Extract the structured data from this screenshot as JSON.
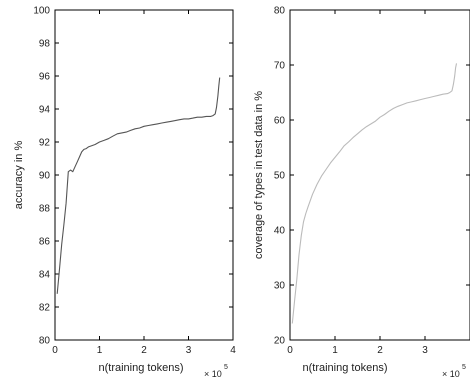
{
  "chart_data": [
    {
      "type": "line",
      "xlabel": "n(training tokens)",
      "ylabel": "accuracy in %",
      "x_exponent_base": "× 10",
      "x_exponent_power": "5",
      "xlim": [
        0,
        4
      ],
      "ylim": [
        80,
        100
      ],
      "xticks": [
        "0",
        "1",
        "2",
        "3",
        "4"
      ],
      "yticks": [
        "80",
        "82",
        "84",
        "86",
        "88",
        "90",
        "92",
        "94",
        "96",
        "98",
        "100"
      ],
      "grid": false,
      "series": [
        {
          "color": "#555555",
          "x": [
            0.05,
            0.1,
            0.15,
            0.2,
            0.25,
            0.3,
            0.35,
            0.4,
            0.45,
            0.5,
            0.55,
            0.6,
            0.65,
            0.7,
            0.75,
            0.8,
            0.9,
            1.0,
            1.1,
            1.2,
            1.3,
            1.4,
            1.5,
            1.6,
            1.7,
            1.8,
            1.9,
            2.0,
            2.1,
            2.2,
            2.3,
            2.4,
            2.5,
            2.6,
            2.7,
            2.8,
            2.9,
            3.0,
            3.1,
            3.2,
            3.3,
            3.4,
            3.5,
            3.55,
            3.6,
            3.63,
            3.66,
            3.68,
            3.7
          ],
          "y": [
            82.8,
            84.3,
            85.8,
            87.0,
            88.3,
            90.2,
            90.3,
            90.2,
            90.5,
            90.8,
            91.1,
            91.4,
            91.55,
            91.6,
            91.7,
            91.75,
            91.85,
            92.0,
            92.1,
            92.2,
            92.35,
            92.5,
            92.55,
            92.6,
            92.7,
            92.8,
            92.85,
            92.95,
            93.0,
            93.05,
            93.1,
            93.15,
            93.2,
            93.25,
            93.3,
            93.35,
            93.4,
            93.4,
            93.45,
            93.5,
            93.5,
            93.55,
            93.55,
            93.6,
            93.7,
            94.1,
            94.8,
            95.4,
            95.9
          ]
        }
      ]
    },
    {
      "type": "line",
      "xlabel": "n(training tokens)",
      "ylabel": "coverage of types in test data in %",
      "x_exponent_base": "× 10",
      "x_exponent_power": "5",
      "xlim": [
        0,
        4
      ],
      "ylim": [
        20,
        80
      ],
      "xticks": [
        "0",
        "1",
        "2",
        "3"
      ],
      "yticks": [
        "20",
        "30",
        "40",
        "50",
        "60",
        "70",
        "80"
      ],
      "grid": false,
      "series": [
        {
          "color": "#bbbbbb",
          "x": [
            0.05,
            0.1,
            0.15,
            0.2,
            0.25,
            0.3,
            0.35,
            0.4,
            0.5,
            0.6,
            0.7,
            0.8,
            0.9,
            1.0,
            1.1,
            1.2,
            1.3,
            1.4,
            1.5,
            1.6,
            1.7,
            1.8,
            1.9,
            2.0,
            2.1,
            2.2,
            2.3,
            2.4,
            2.5,
            2.6,
            2.7,
            2.8,
            2.9,
            3.0,
            3.1,
            3.2,
            3.3,
            3.4,
            3.5,
            3.55,
            3.6,
            3.63,
            3.66,
            3.68,
            3.7
          ],
          "y": [
            23.0,
            27.0,
            31.0,
            35.5,
            39.0,
            41.5,
            43.0,
            44.2,
            46.5,
            48.3,
            49.8,
            51.0,
            52.2,
            53.2,
            54.2,
            55.3,
            56.0,
            56.8,
            57.5,
            58.2,
            58.8,
            59.3,
            59.8,
            60.5,
            61.0,
            61.6,
            62.1,
            62.5,
            62.8,
            63.1,
            63.3,
            63.5,
            63.7,
            63.9,
            64.1,
            64.3,
            64.5,
            64.7,
            64.8,
            65.0,
            65.3,
            66.5,
            68.0,
            69.5,
            70.3
          ]
        }
      ]
    }
  ]
}
